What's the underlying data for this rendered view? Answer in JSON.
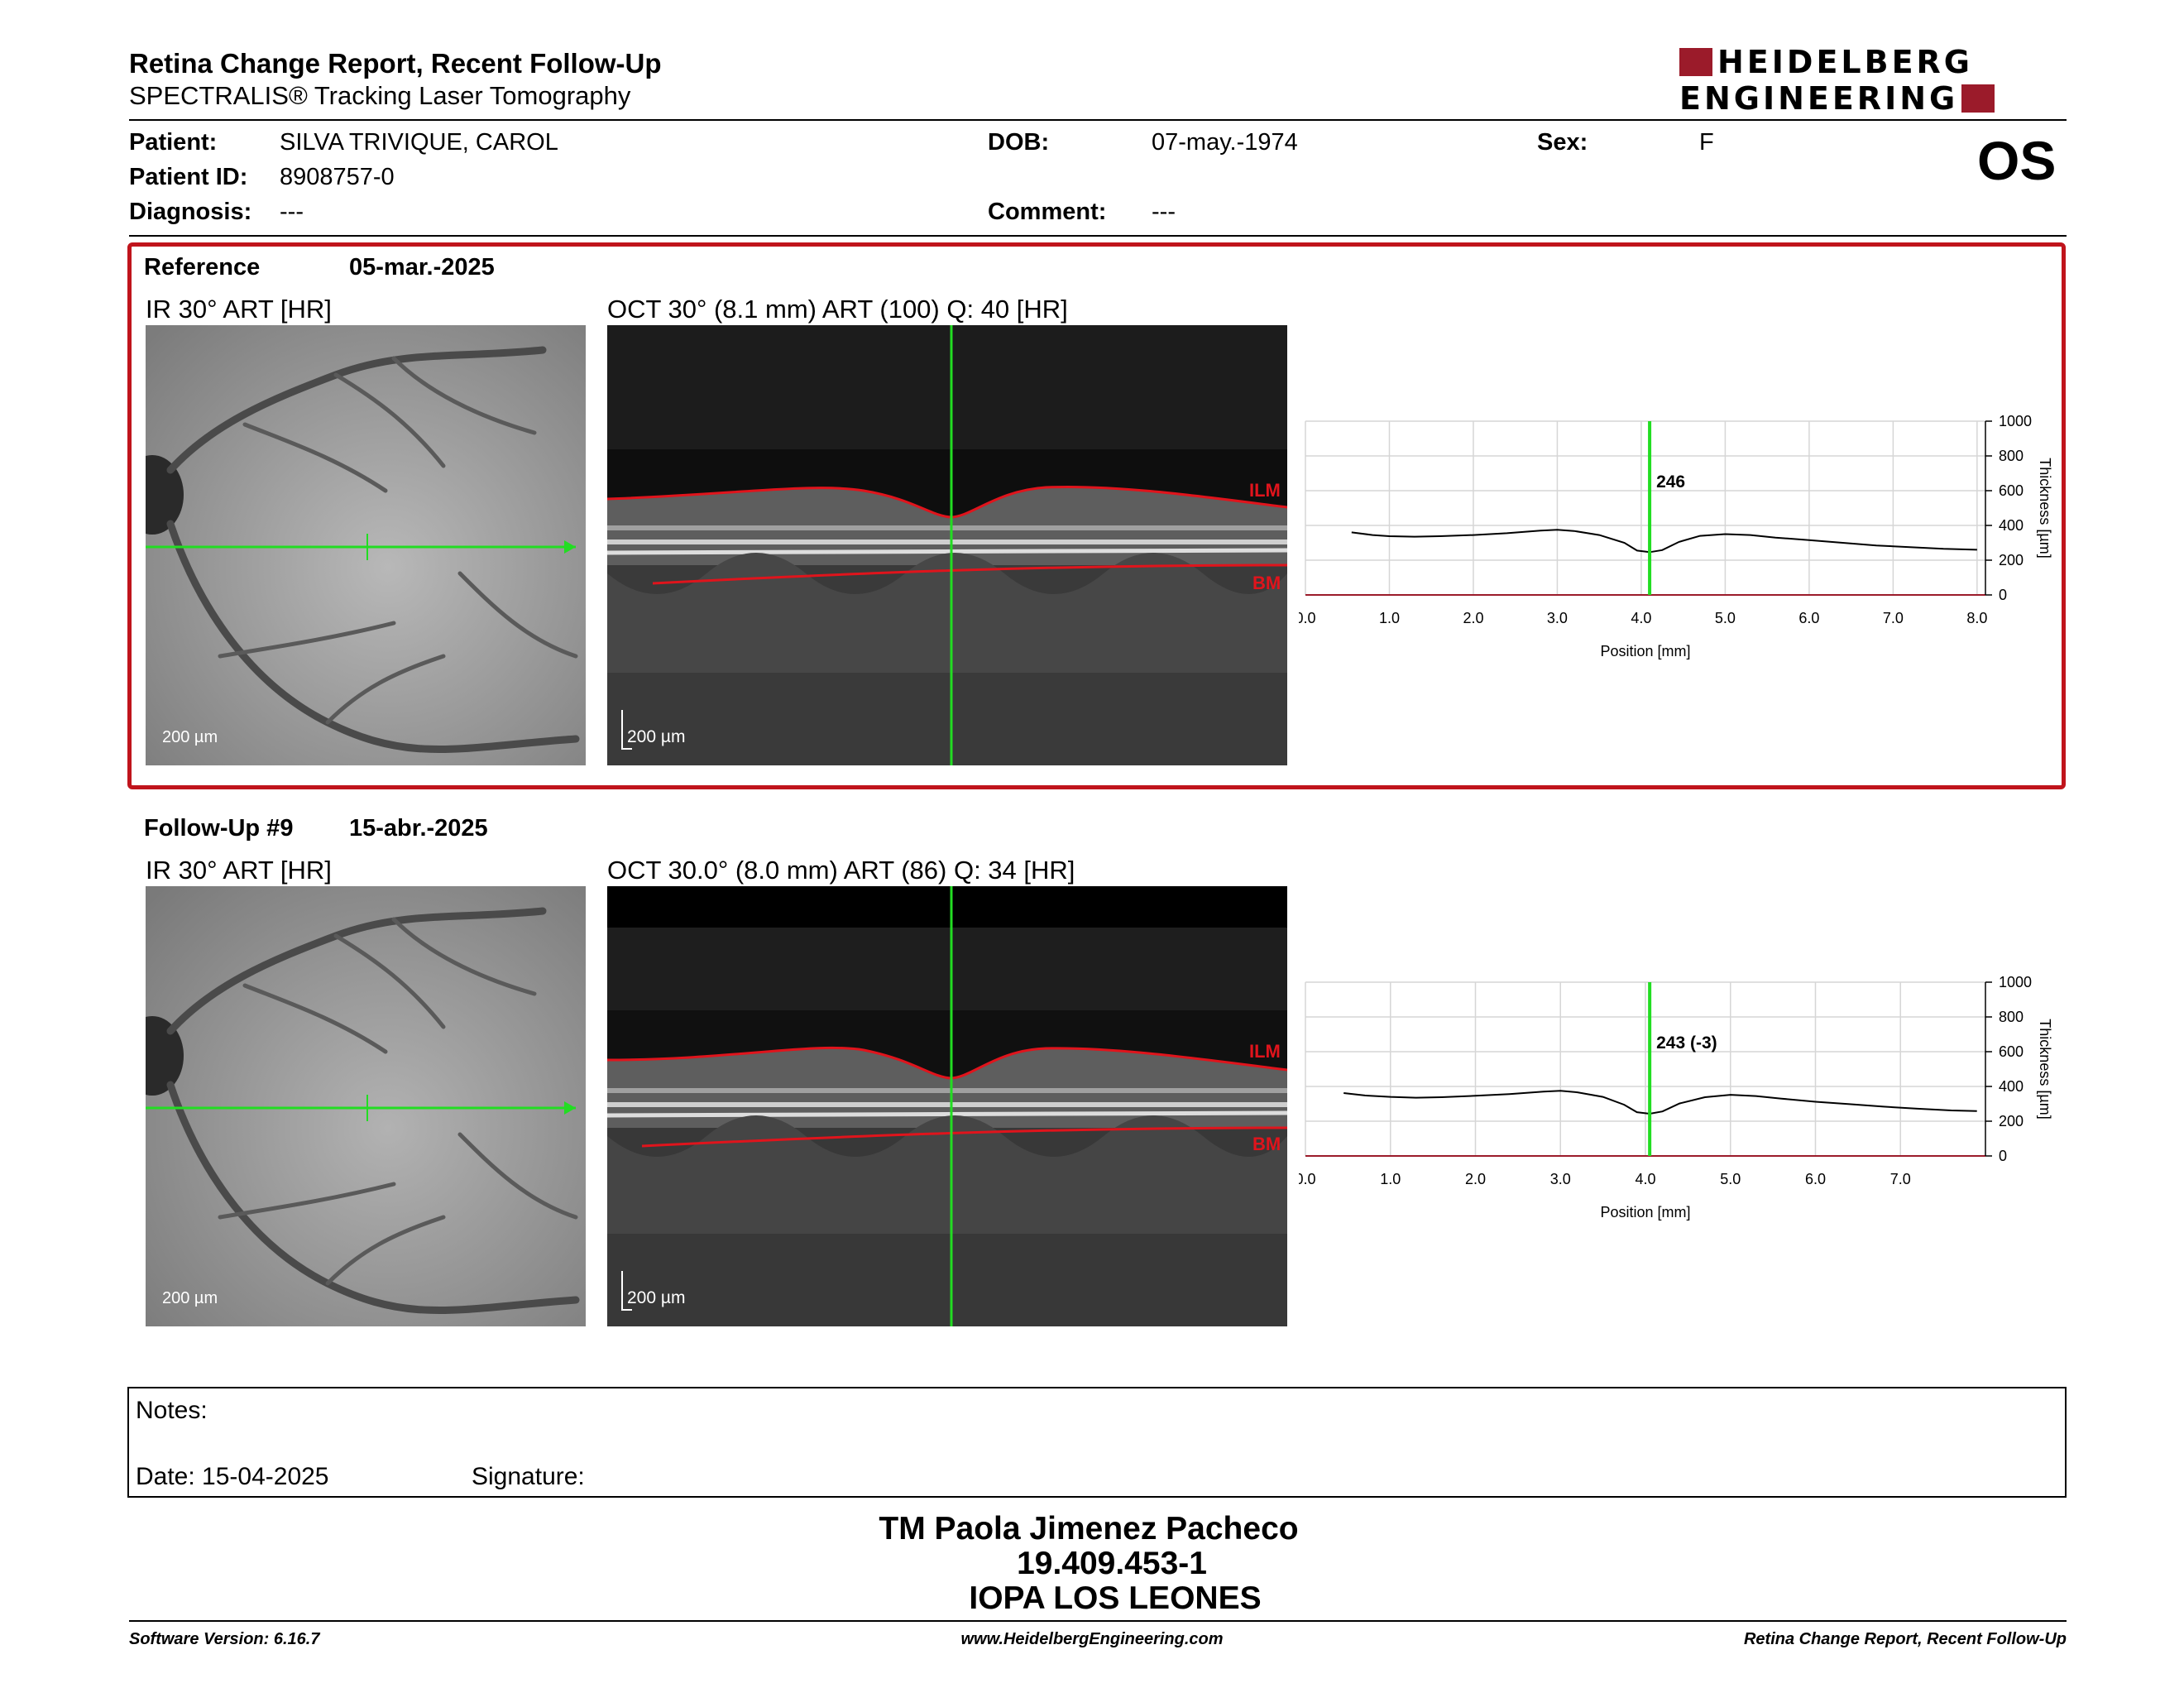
{
  "header": {
    "title": "Retina Change Report, Recent Follow-Up",
    "subtitle": "SPECTRALIS® Tracking Laser Tomography",
    "logo_line1": "HEIDELBERG",
    "logo_line2": "ENGINEERING",
    "brand_color": "#9b1b2a"
  },
  "patient": {
    "patient_label": "Patient:",
    "patient_value": "SILVA TRIVIQUE, CAROL",
    "id_label": "Patient ID:",
    "id_value": "8908757-0",
    "diagnosis_label": "Diagnosis:",
    "diagnosis_value": "---",
    "dob_label": "DOB:",
    "dob_value": "07-may.-1974",
    "comment_label": "Comment:",
    "comment_value": "---",
    "sex_label": "Sex:",
    "sex_value": "F",
    "eye": "OS"
  },
  "reference": {
    "label": "Reference",
    "date": "05-mar.-2025",
    "ir_caption": "IR 30° ART [HR]",
    "oct_caption": "OCT 30° (8.1 mm) ART (100) Q: 40 [HR]",
    "ir_scale": "200 µm",
    "oct_scale": "200 µm",
    "ilm_label": "ILM",
    "bm_label": "BM",
    "box_color": "#c0141c"
  },
  "followup": {
    "label": "Follow-Up #9",
    "date": "15-abr.-2025",
    "ir_caption": "IR 30° ART [HR]",
    "oct_caption": "OCT 30.0° (8.0 mm) ART (86) Q: 34 [HR]",
    "ir_scale": "200 µm",
    "oct_scale": "200 µm",
    "ilm_label": "ILM",
    "bm_label": "BM"
  },
  "chart_data": [
    {
      "type": "line",
      "xlabel": "Position [mm]",
      "ylabel": "Thickness [µm]",
      "xlim": [
        0.0,
        8.1
      ],
      "ylim": [
        0,
        1000
      ],
      "x_ticks": [
        "0.0",
        "1.0",
        "2.0",
        "3.0",
        "4.0",
        "5.0",
        "6.0",
        "7.0",
        "8.0"
      ],
      "y_ticks": [
        "0",
        "200",
        "400",
        "600",
        "800",
        "1000"
      ],
      "grid": true,
      "marker_x": 4.1,
      "marker_label": "246",
      "marker_color": "#22dd22",
      "series": [
        {
          "x": [
            0.55,
            0.8,
            1.0,
            1.3,
            1.6,
            2.0,
            2.4,
            2.8,
            3.0,
            3.2,
            3.5,
            3.8,
            3.95,
            4.1,
            4.25,
            4.45,
            4.7,
            5.0,
            5.3,
            5.6,
            6.0,
            6.4,
            6.8,
            7.2,
            7.6,
            8.0
          ],
          "values": [
            360,
            345,
            338,
            335,
            338,
            345,
            355,
            370,
            375,
            368,
            345,
            300,
            255,
            246,
            258,
            305,
            340,
            350,
            345,
            330,
            315,
            300,
            285,
            275,
            265,
            260
          ]
        }
      ]
    },
    {
      "type": "line",
      "xlabel": "Position [mm]",
      "ylabel": "Thickness [µm]",
      "xlim": [
        0.0,
        8.0
      ],
      "ylim": [
        0,
        1000
      ],
      "x_ticks": [
        "0.0",
        "1.0",
        "2.0",
        "3.0",
        "4.0",
        "5.0",
        "6.0",
        "7.0"
      ],
      "y_ticks": [
        "0",
        "200",
        "400",
        "600",
        "800",
        "1000"
      ],
      "grid": true,
      "marker_x": 4.05,
      "marker_label": "243 (-3)",
      "marker_color": "#22dd22",
      "series": [
        {
          "x": [
            0.45,
            0.7,
            1.0,
            1.3,
            1.6,
            2.0,
            2.4,
            2.8,
            3.0,
            3.2,
            3.5,
            3.75,
            3.9,
            4.05,
            4.2,
            4.4,
            4.7,
            5.0,
            5.3,
            5.6,
            6.0,
            6.4,
            6.8,
            7.2,
            7.6,
            7.9
          ],
          "values": [
            362,
            348,
            340,
            335,
            338,
            346,
            356,
            370,
            375,
            366,
            340,
            295,
            252,
            243,
            256,
            302,
            338,
            352,
            345,
            330,
            312,
            298,
            284,
            272,
            262,
            258
          ]
        }
      ]
    }
  ],
  "notes": {
    "notes_label": "Notes:",
    "date_label": "Date: 15-04-2025",
    "signature_label": "Signature:"
  },
  "signatory": {
    "name": "TM Paola Jimenez Pacheco",
    "id": "19.409.453-1",
    "institution": "IOPA LOS LEONES"
  },
  "footer": {
    "version": "Software Version: 6.16.7",
    "website": "www.HeidelbergEngineering.com",
    "report": "Retina Change Report, Recent Follow-Up"
  }
}
